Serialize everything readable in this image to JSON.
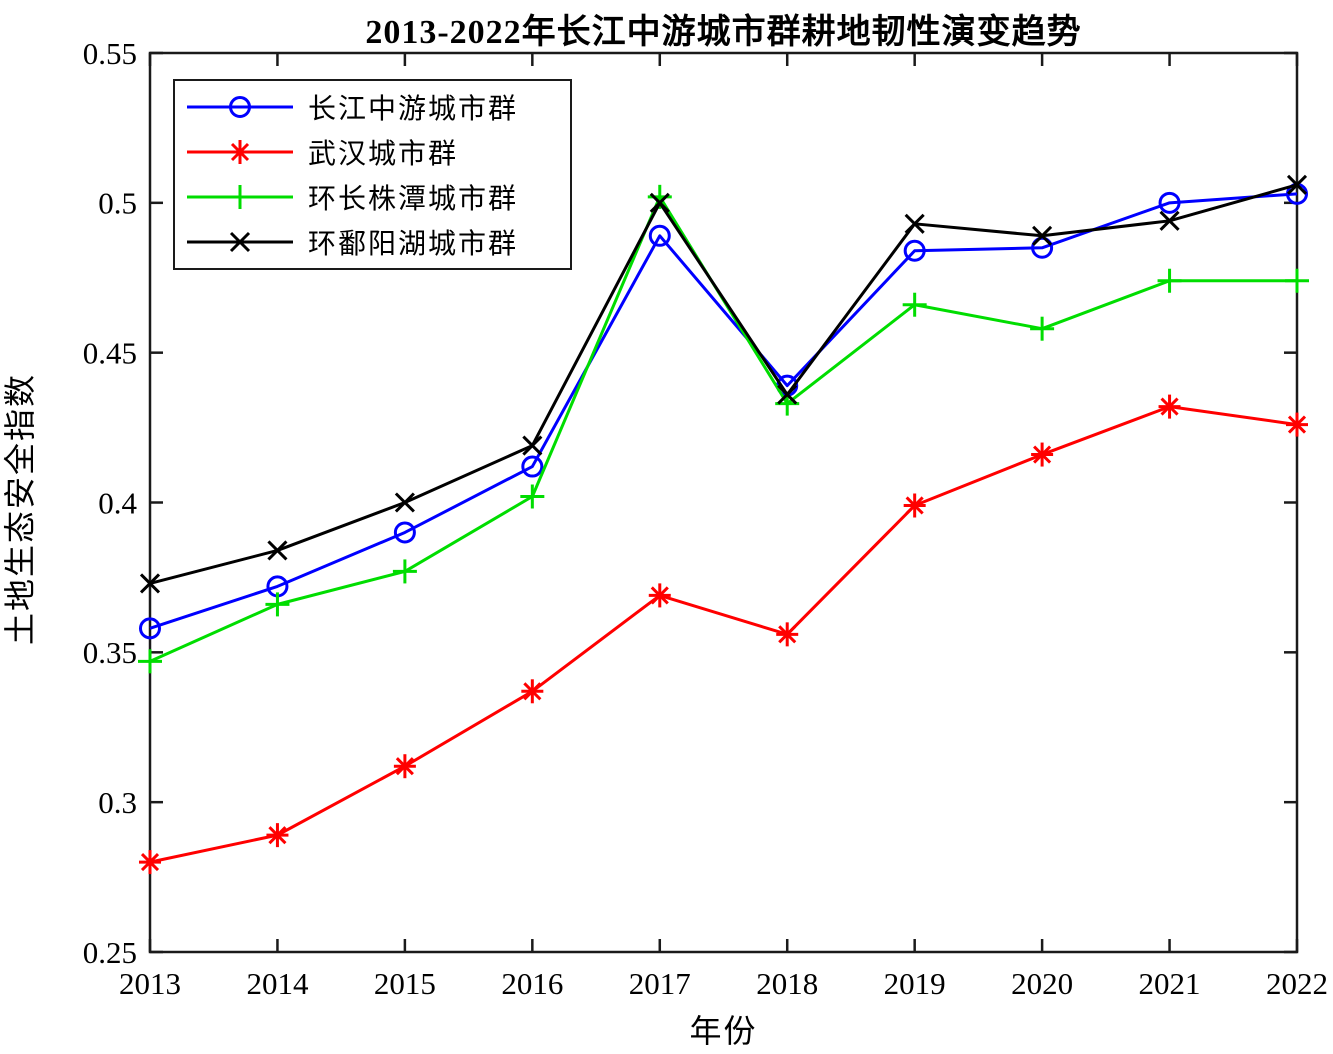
{
  "chart_data": {
    "type": "line",
    "title": "2013-2022年长江中游城市群耕地韧性演变趋势",
    "xlabel": "年份",
    "ylabel": "土地生态安全指数",
    "x": [
      2013,
      2014,
      2015,
      2016,
      2017,
      2018,
      2019,
      2020,
      2021,
      2022
    ],
    "x_tick_labels": [
      "2013",
      "2014",
      "2015",
      "2016",
      "2017",
      "2018",
      "2019",
      "2020",
      "2021",
      "2022"
    ],
    "y_ticks": [
      0.25,
      0.3,
      0.35,
      0.4,
      0.45,
      0.5,
      0.55
    ],
    "y_tick_labels": [
      "0.25",
      "0.3",
      "0.35",
      "0.4",
      "0.45",
      "0.5",
      "0.55"
    ],
    "xlim": [
      2013,
      2022
    ],
    "ylim": [
      0.25,
      0.55
    ],
    "grid": false,
    "legend_position": "top-left",
    "axis_color": "#1a1a1a",
    "series": [
      {
        "name": "长江中游城市群",
        "color": "#0000ff",
        "marker": "circle",
        "values": [
          0.358,
          0.372,
          0.39,
          0.412,
          0.489,
          0.439,
          0.484,
          0.485,
          0.5,
          0.503
        ]
      },
      {
        "name": "武汉城市群",
        "color": "#ff0000",
        "marker": "asterisk",
        "values": [
          0.28,
          0.289,
          0.312,
          0.337,
          0.369,
          0.356,
          0.399,
          0.416,
          0.432,
          0.426
        ]
      },
      {
        "name": "环长株潭城市群",
        "color": "#00dd00",
        "marker": "plus",
        "values": [
          0.347,
          0.366,
          0.377,
          0.402,
          0.502,
          0.433,
          0.466,
          0.458,
          0.474,
          0.474
        ]
      },
      {
        "name": "环鄱阳湖城市群",
        "color": "#000000",
        "marker": "x",
        "values": [
          0.373,
          0.384,
          0.4,
          0.419,
          0.5,
          0.436,
          0.493,
          0.489,
          0.494,
          0.506
        ]
      }
    ]
  }
}
